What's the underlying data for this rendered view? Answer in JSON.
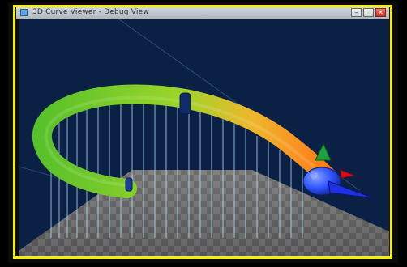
{
  "window": {
    "title": "3D Curve Viewer - Debug View",
    "minimize_label": "–",
    "maximize_label": "□",
    "close_label": "✕"
  },
  "viewport": {
    "background": "#0a2145",
    "tube_colors": [
      "#59c12a",
      "#9bd52a",
      "#f0b62b",
      "#ff7a1a"
    ],
    "floor_colors": [
      "#737373",
      "#5e5e5e"
    ],
    "guide_line_color": "#bfe8ff",
    "head_color": "#1f43ff",
    "marker_color": "#173b9a",
    "green_arrow_color": "#1da23d",
    "red_arrow_color": "#e10a1a"
  }
}
